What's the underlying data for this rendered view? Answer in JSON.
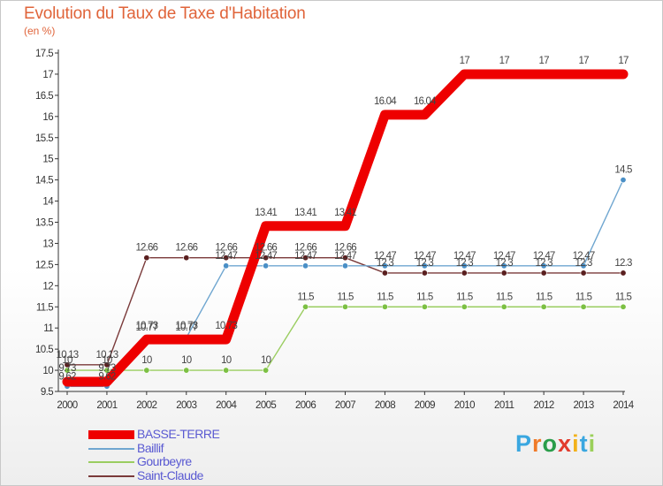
{
  "header": {
    "title": "Evolution du Taux de Taxe d'Habitation",
    "unit": "(en %)"
  },
  "chart_data": {
    "type": "line",
    "title": "Evolution du Taux de Taxe d'Habitation",
    "ylabel": "(en %)",
    "xlabel": "",
    "ylim": [
      9.5,
      17.5
    ],
    "ytick_step": 0.5,
    "grid": false,
    "legend_position": "bottom-left",
    "x": [
      "2000",
      "2001",
      "2002",
      "2003",
      "2004",
      "2005",
      "2006",
      "2007",
      "2008",
      "2009",
      "2010",
      "2011",
      "2012",
      "2013",
      "2014"
    ],
    "series": [
      {
        "name": "Gourbeyre",
        "color": "#9acd60",
        "marker": "#7cc043",
        "values": [
          10,
          10,
          10,
          10,
          10,
          10,
          11.5,
          11.5,
          11.5,
          11.5,
          11.5,
          11.5,
          11.5,
          11.5,
          11.5
        ],
        "labels": [
          "10",
          "10",
          "10",
          "10",
          "10",
          "10",
          "11.5",
          "11.5",
          "11.5",
          "11.5",
          "11.5",
          "11.5",
          "11.5",
          "11.5",
          "11.5"
        ]
      },
      {
        "name": "Saint-Claude",
        "color": "#7a3a3a",
        "marker": "#5a1f1f",
        "values": [
          10.13,
          10.13,
          12.66,
          12.66,
          12.66,
          12.66,
          12.66,
          12.66,
          12.3,
          12.3,
          12.3,
          12.3,
          12.3,
          12.3,
          12.3
        ],
        "labels": [
          "10.13",
          "10.13",
          "12.66",
          "12.66",
          "12.66",
          "12.66",
          "12.66",
          "12.66",
          "12.3",
          "12.3",
          "12.3",
          "12.3",
          "12.3",
          "12.3",
          "12.3"
        ]
      },
      {
        "name": "Baillif",
        "color": "#6fa6d0",
        "marker": "#4a8fc6",
        "values": [
          9.62,
          9.62,
          10.77,
          10.77,
          12.47,
          12.47,
          12.47,
          12.47,
          12.47,
          12.47,
          12.47,
          12.47,
          12.47,
          12.47,
          14.5
        ],
        "labels": [
          "9.62",
          "9.62",
          "10.77",
          "10.77",
          "12.47",
          "12.47",
          "12.47",
          "12.47",
          "12.47",
          "12.47",
          "12.47",
          "12.47",
          "12.47",
          "12.47",
          "14.5"
        ]
      },
      {
        "name": "BASSE-TERRE",
        "color": "#ee0000",
        "marker": "#ee0000",
        "values": [
          9.73,
          9.73,
          10.73,
          10.73,
          10.73,
          13.41,
          13.41,
          13.41,
          16.04,
          16.04,
          17,
          17,
          17,
          17,
          17
        ],
        "labels": [
          "9.73",
          "9.73",
          "10.73",
          "10.73",
          "10.73",
          "13.41",
          "13.41",
          "13.41",
          "16.04",
          "16.04",
          "17",
          "17",
          "17",
          "17",
          "17"
        ]
      }
    ],
    "legend": [
      "BASSE-TERRE",
      "Baillif",
      "Gourbeyre",
      "Saint-Claude"
    ]
  },
  "legend": {
    "items": [
      {
        "name": "BASSE-TERRE",
        "color": "#ee0000",
        "thick": true
      },
      {
        "name": "Baillif",
        "color": "#6fa6d0",
        "thick": false
      },
      {
        "name": "Gourbeyre",
        "color": "#9acd60",
        "thick": false
      },
      {
        "name": "Saint-Claude",
        "color": "#7a3a3a",
        "thick": false
      }
    ]
  },
  "logo": {
    "letters": [
      "P",
      "r",
      "o",
      "x",
      "i",
      "t",
      "i"
    ],
    "colors": [
      "#3aa7e0",
      "#f07a28",
      "#2a9d4a",
      "#e23b2d",
      "#f2b21b",
      "#3aa7e0",
      "#9bd05a"
    ]
  }
}
